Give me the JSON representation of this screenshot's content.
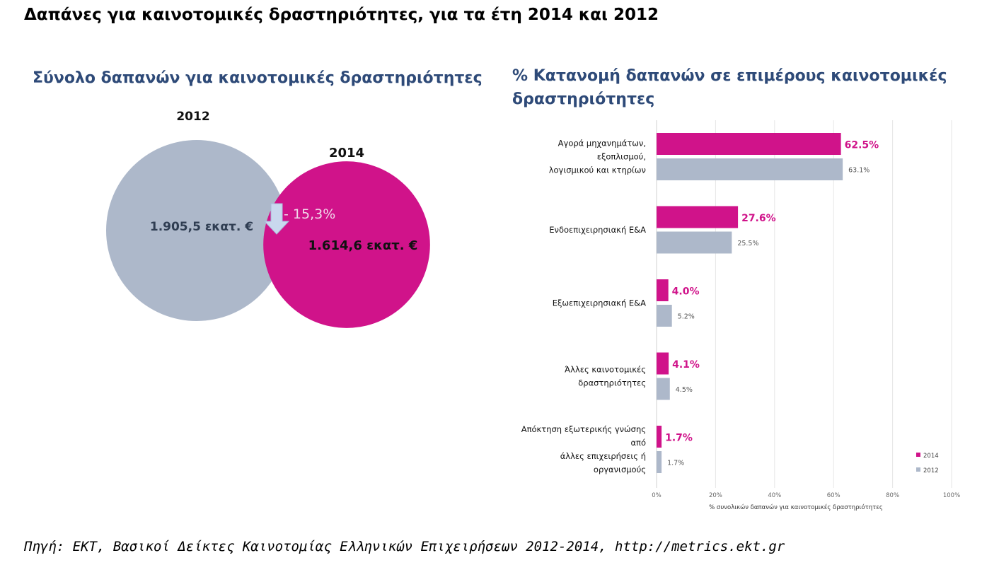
{
  "title": "Δαπάνες για καινοτομικές δραστηριότητες, για τα έτη 2014 και 2012",
  "source": "Πηγή: ΕΚΤ, Βασικοί Δείκτες Καινοτομίας Ελληνικών Επιχειρήσεων 2012-2014, http://metrics.ekt.gr",
  "colors": {
    "y2014": "#d0138a",
    "y2012": "#adb8ca",
    "title_blue": "#2e4a78",
    "arrow": "#c9d8ee"
  },
  "chart_data": [
    {
      "type": "bubble",
      "title": "Σύνολο δαπανών για καινοτομικές δραστηριότητες",
      "items": [
        {
          "year": "2012",
          "label": "2012",
          "value": 1905.5,
          "value_label": "1.905,5 εκατ. €"
        },
        {
          "year": "2014",
          "label": "2014",
          "value": 1614.6,
          "value_label": "1.614,6 εκατ. €"
        }
      ],
      "change_label": "- 15,3%"
    },
    {
      "type": "bar",
      "orientation": "horizontal",
      "title": "% Κατανομή δαπανών σε επιμέρους καινοτομικές δραστηριότητες",
      "categories": [
        [
          "Αγορά μηχανημάτων,",
          "εξοπλισμού,",
          "λογισμικού και κτηρίων"
        ],
        [
          "Ενδοεπιχειρησιακή Ε&Α"
        ],
        [
          "Εξωεπιχειρησιακή Ε&Α"
        ],
        [
          "Άλλες καινοτομικές",
          "δραστηριότητες"
        ],
        [
          "Απόκτηση εξωτερικής γνώσης",
          "από",
          "άλλες επιχειρήσεις ή",
          "οργανισμούς"
        ]
      ],
      "series": [
        {
          "name": "2014",
          "values": [
            62.5,
            27.6,
            4.0,
            4.1,
            1.7
          ],
          "labels": [
            "62.5%",
            "27.6%",
            "4.0%",
            "4.1%",
            "1.7%"
          ]
        },
        {
          "name": "2012",
          "values": [
            63.1,
            25.5,
            5.2,
            4.5,
            1.7
          ],
          "labels": [
            "63.1%",
            "25.5%",
            "5.2%",
            "4.5%",
            "1.7%"
          ]
        }
      ],
      "xlabel": "% συνολικών δαπανών για καινοτομικές δραστηριότητες",
      "xlim": [
        0,
        100
      ],
      "xticks": [
        "0%",
        "20%",
        "40%",
        "60%",
        "80%",
        "100%"
      ],
      "grid": true,
      "legend": "bottom-right"
    }
  ]
}
